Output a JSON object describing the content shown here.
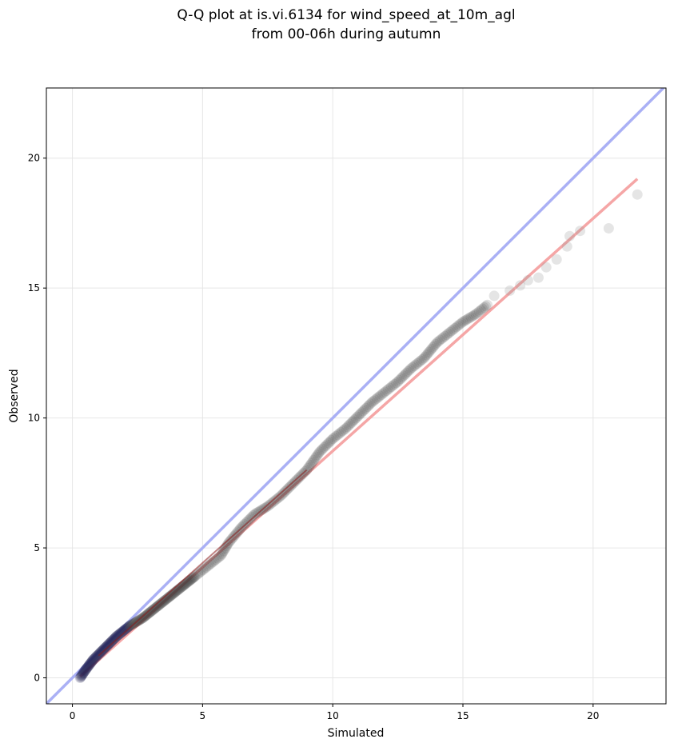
{
  "chart_data": {
    "type": "scatter",
    "title_line1": "Q-Q plot at is.vi.6134 for wind_speed_at_10m_agl",
    "title_line2": "from 00-06h during autumn",
    "xlabel": "Simulated",
    "ylabel": "Observed",
    "xlim": [
      -1.0,
      22.8
    ],
    "ylim": [
      -1.0,
      22.7
    ],
    "xticks": [
      0,
      5,
      10,
      15,
      20
    ],
    "yticks": [
      0,
      5,
      10,
      15,
      20
    ],
    "grid": true,
    "colors": {
      "identity_line": "#aab0f5",
      "fit_line": "#f5a6a6",
      "fit_line_dark": "#8b1a1a",
      "points": "#333333",
      "points_dense": "#1a1a4d"
    },
    "identity_line": {
      "x": [
        -1.0,
        22.8
      ],
      "y": [
        -1.0,
        22.8
      ]
    },
    "fit_line": {
      "x": [
        0.3,
        21.7
      ],
      "y": [
        0.05,
        19.2
      ]
    },
    "quantile_curve": {
      "x": [
        0.3,
        0.5,
        0.8,
        1.2,
        1.7,
        2.2,
        2.7,
        3.2,
        3.7,
        4.2,
        4.7,
        5.2,
        5.7,
        6.0,
        6.5,
        7.0,
        7.5,
        8.0,
        8.5,
        9.0,
        9.5,
        10.0,
        10.5,
        11.0,
        11.5,
        12.0,
        12.5,
        13.0,
        13.5,
        14.0,
        14.5,
        15.0,
        15.5,
        16.0
      ],
      "y": [
        0.0,
        0.3,
        0.7,
        1.1,
        1.6,
        2.0,
        2.3,
        2.7,
        3.1,
        3.5,
        3.9,
        4.3,
        4.7,
        5.2,
        5.8,
        6.3,
        6.6,
        7.0,
        7.5,
        8.0,
        8.7,
        9.2,
        9.6,
        10.1,
        10.6,
        11.0,
        11.4,
        11.9,
        12.3,
        12.9,
        13.3,
        13.7,
        14.0,
        14.4
      ]
    },
    "tail_points": [
      {
        "x": 16.2,
        "y": 14.7
      },
      {
        "x": 16.8,
        "y": 14.9
      },
      {
        "x": 17.2,
        "y": 15.1
      },
      {
        "x": 17.5,
        "y": 15.3
      },
      {
        "x": 17.9,
        "y": 15.4
      },
      {
        "x": 18.2,
        "y": 15.8
      },
      {
        "x": 18.6,
        "y": 16.1
      },
      {
        "x": 19.0,
        "y": 16.6
      },
      {
        "x": 19.1,
        "y": 17.0
      },
      {
        "x": 19.5,
        "y": 17.2
      },
      {
        "x": 20.6,
        "y": 17.3
      },
      {
        "x": 21.7,
        "y": 18.6
      }
    ]
  }
}
